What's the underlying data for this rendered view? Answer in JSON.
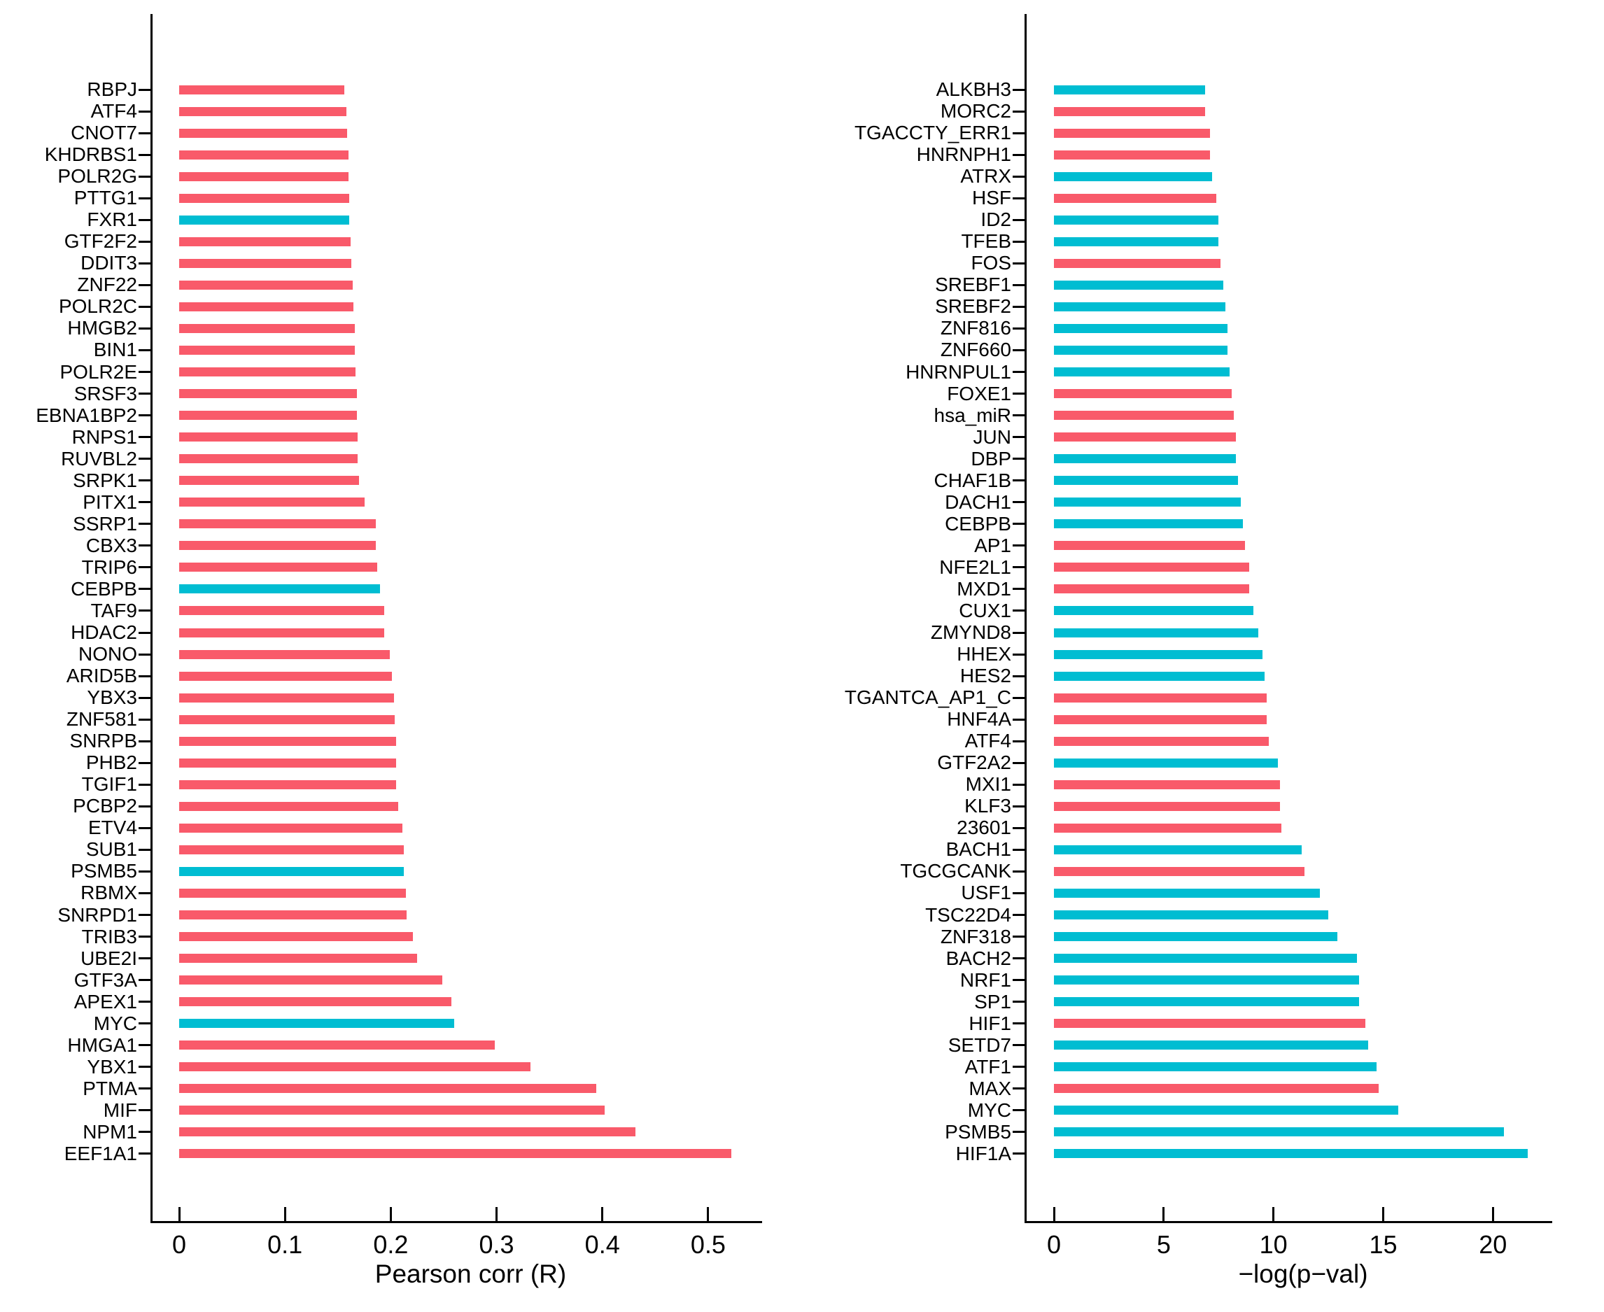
{
  "figure": {
    "background": "#ffffff"
  },
  "colors": {
    "red": "#F95A6A",
    "cyan": "#00BDD2",
    "axis": "#000000",
    "text": "#000000"
  },
  "chart_data": [
    {
      "type": "bar",
      "orientation": "horizontal",
      "title": "",
      "xlabel": "Pearson corr (R)",
      "ylabel": "",
      "xlim": [
        0,
        0.551
      ],
      "x_ticks": [
        0,
        0.1,
        0.2,
        0.3,
        0.4,
        0.5
      ],
      "x_tick_labels": [
        "0",
        "0.1",
        "0.2",
        "0.3",
        "0.4",
        "0.5"
      ],
      "grid": false,
      "legend": false,
      "categories": [
        "RBPJ",
        "ATF4",
        "CNOT7",
        "KHDRBS1",
        "POLR2G",
        "PTTG1",
        "FXR1",
        "GTF2F2",
        "DDIT3",
        "ZNF22",
        "POLR2C",
        "HMGB2",
        "BIN1",
        "POLR2E",
        "SRSF3",
        "EBNA1BP2",
        "RNPS1",
        "RUVBL2",
        "SRPK1",
        "PITX1",
        "SSRP1",
        "CBX3",
        "TRIP6",
        "CEBPB",
        "TAF9",
        "HDAC2",
        "NONO",
        "ARID5B",
        "YBX3",
        "ZNF581",
        "SNRPB",
        "PHB2",
        "TGIF1",
        "PCBP2",
        "ETV4",
        "SUB1",
        "PSMB5",
        "RBMX",
        "SNRPD1",
        "TRIB3",
        "UBE2I",
        "GTF3A",
        "APEX1",
        "MYC",
        "HMGA1",
        "YBX1",
        "PTMA",
        "MIF",
        "NPM1",
        "EEF1A1"
      ],
      "values": [
        0.156,
        0.158,
        0.159,
        0.16,
        0.16,
        0.161,
        0.161,
        0.162,
        0.163,
        0.164,
        0.165,
        0.166,
        0.166,
        0.167,
        0.168,
        0.168,
        0.169,
        0.169,
        0.17,
        0.175,
        0.186,
        0.186,
        0.187,
        0.19,
        0.194,
        0.194,
        0.199,
        0.201,
        0.203,
        0.204,
        0.205,
        0.205,
        0.205,
        0.207,
        0.211,
        0.212,
        0.212,
        0.214,
        0.215,
        0.221,
        0.225,
        0.249,
        0.257,
        0.26,
        0.298,
        0.332,
        0.394,
        0.402,
        0.431,
        0.522
      ],
      "bar_colors": [
        "red",
        "red",
        "red",
        "red",
        "red",
        "red",
        "cyan",
        "red",
        "red",
        "red",
        "red",
        "red",
        "red",
        "red",
        "red",
        "red",
        "red",
        "red",
        "red",
        "red",
        "red",
        "red",
        "red",
        "cyan",
        "red",
        "red",
        "red",
        "red",
        "red",
        "red",
        "red",
        "red",
        "red",
        "red",
        "red",
        "red",
        "cyan",
        "red",
        "red",
        "red",
        "red",
        "red",
        "red",
        "cyan",
        "red",
        "red",
        "red",
        "red",
        "red",
        "red"
      ]
    },
    {
      "type": "bar",
      "orientation": "horizontal",
      "title": "",
      "xlabel": "−log(p−val)",
      "ylabel": "",
      "xlim": [
        0,
        22.7
      ],
      "x_ticks": [
        0,
        5,
        10,
        15,
        20
      ],
      "x_tick_labels": [
        "0",
        "5",
        "10",
        "15",
        "20"
      ],
      "grid": false,
      "legend": false,
      "categories": [
        "ALKBH3",
        "MORC2",
        "TGACCTY_ERR1",
        "HNRNPH1",
        "ATRX",
        "HSF",
        "ID2",
        "TFEB",
        "FOS",
        "SREBF1",
        "SREBF2",
        "ZNF816",
        "ZNF660",
        "HNRNPUL1",
        "FOXE1",
        "hsa_miR",
        "JUN",
        "DBP",
        "CHAF1B",
        "DACH1",
        "CEBPB",
        "AP1",
        "NFE2L1",
        "MXD1",
        "CUX1",
        "ZMYND8",
        "HHEX",
        "HES2",
        "TGANTCA_AP1_C",
        "HNF4A",
        "ATF4",
        "GTF2A2",
        "MXI1",
        "KLF3",
        "23601",
        "BACH1",
        "TGCGCANK",
        "USF1",
        "TSC22D4",
        "ZNF318",
        "BACH2",
        "NRF1",
        "SP1",
        "HIF1",
        "SETD7",
        "ATF1",
        "MAX",
        "MYC",
        "PSMB5",
        "HIF1A"
      ],
      "values": [
        6.9,
        6.9,
        7.1,
        7.1,
        7.2,
        7.4,
        7.5,
        7.5,
        7.6,
        7.7,
        7.8,
        7.9,
        7.9,
        8.0,
        8.1,
        8.2,
        8.3,
        8.3,
        8.4,
        8.5,
        8.6,
        8.7,
        8.9,
        8.9,
        9.1,
        9.3,
        9.5,
        9.6,
        9.7,
        9.7,
        9.8,
        10.2,
        10.3,
        10.3,
        10.35,
        11.3,
        11.4,
        12.1,
        12.5,
        12.9,
        13.8,
        13.9,
        13.9,
        14.2,
        14.3,
        14.7,
        14.8,
        15.7,
        20.5,
        21.6
      ],
      "bar_colors": [
        "cyan",
        "red",
        "red",
        "red",
        "cyan",
        "red",
        "cyan",
        "cyan",
        "red",
        "cyan",
        "cyan",
        "cyan",
        "cyan",
        "cyan",
        "red",
        "red",
        "red",
        "cyan",
        "cyan",
        "cyan",
        "cyan",
        "red",
        "red",
        "red",
        "cyan",
        "cyan",
        "cyan",
        "cyan",
        "red",
        "red",
        "red",
        "cyan",
        "red",
        "red",
        "red",
        "cyan",
        "red",
        "cyan",
        "cyan",
        "cyan",
        "cyan",
        "cyan",
        "cyan",
        "red",
        "cyan",
        "cyan",
        "red",
        "cyan",
        "cyan",
        "cyan"
      ]
    }
  ]
}
